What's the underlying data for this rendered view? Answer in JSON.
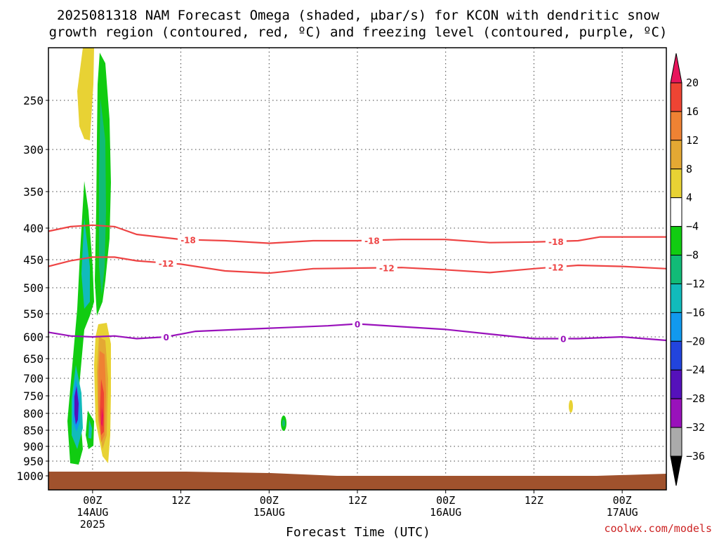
{
  "chart_data": {
    "type": "heatmap",
    "title_line1": "2025081318 NAM Forecast Omega (shaded, μbar/s) for KCON with dendritic snow",
    "title_line2": "growth region (contoured, red, ºC) and freezing level (contoured, purple, ºC)",
    "xlabel": "Forecast Time (UTC)",
    "ylabel": "",
    "credit": "coolwx.com/models",
    "x_hours_range": [
      0,
      84
    ],
    "y_pressure_range": [
      1000,
      200
    ],
    "y_ticks": [
      "250",
      "300",
      "350",
      "400",
      "450",
      "500",
      "550",
      "600",
      "650",
      "700",
      "750",
      "800",
      "850",
      "900",
      "950",
      "1000"
    ],
    "x_ticks": [
      {
        "hour": 6,
        "l1": "00Z",
        "l2": "14AUG",
        "l3": "2025"
      },
      {
        "hour": 18,
        "l1": "12Z",
        "l2": "",
        "l3": ""
      },
      {
        "hour": 30,
        "l1": "00Z",
        "l2": "15AUG",
        "l3": ""
      },
      {
        "hour": 42,
        "l1": "12Z",
        "l2": "",
        "l3": ""
      },
      {
        "hour": 54,
        "l1": "00Z",
        "l2": "16AUG",
        "l3": ""
      },
      {
        "hour": 66,
        "l1": "12Z",
        "l2": "",
        "l3": ""
      },
      {
        "hour": 78,
        "l1": "00Z",
        "l2": "17AUG",
        "l3": ""
      }
    ],
    "colorbar": {
      "labels": [
        "20",
        "16",
        "12",
        "8",
        "4",
        "−4",
        "−8",
        "−12",
        "−16",
        "−20",
        "−24",
        "−28",
        "−32",
        "−36"
      ],
      "colors": [
        "#e8155c",
        "#ee4433",
        "#ef8233",
        "#e4a833",
        "#e8d234",
        "#ffffff",
        "#11cc11",
        "#11bb77",
        "#11bbbb",
        "#1199ee",
        "#2244dd",
        "#5511bb",
        "#9911bb",
        "#aaaaaa",
        "#000000"
      ]
    },
    "contours": [
      {
        "name": "-18 C",
        "label": "-18",
        "color": "#ee4444",
        "points": [
          [
            0,
            405
          ],
          [
            3,
            398
          ],
          [
            6,
            396
          ],
          [
            9,
            398
          ],
          [
            12,
            410
          ],
          [
            18,
            418
          ],
          [
            24,
            420
          ],
          [
            30,
            424
          ],
          [
            36,
            420
          ],
          [
            42,
            420
          ],
          [
            48,
            418
          ],
          [
            54,
            418
          ],
          [
            60,
            423
          ],
          [
            66,
            422
          ],
          [
            72,
            420
          ],
          [
            75,
            414
          ],
          [
            78,
            414
          ],
          [
            84,
            414
          ]
        ],
        "label_hours": [
          19,
          44,
          69
        ]
      },
      {
        "name": "-12 C",
        "label": "-12",
        "color": "#ee4444",
        "points": [
          [
            0,
            462
          ],
          [
            3,
            452
          ],
          [
            6,
            446
          ],
          [
            9,
            446
          ],
          [
            12,
            452
          ],
          [
            18,
            458
          ],
          [
            24,
            470
          ],
          [
            30,
            474
          ],
          [
            36,
            466
          ],
          [
            42,
            465
          ],
          [
            48,
            464
          ],
          [
            54,
            468
          ],
          [
            60,
            473
          ],
          [
            66,
            466
          ],
          [
            72,
            460
          ],
          [
            78,
            462
          ],
          [
            84,
            466
          ]
        ],
        "label_hours": [
          16,
          46,
          69
        ]
      },
      {
        "name": "0 C",
        "label": "0",
        "color": "#9911bb",
        "points": [
          [
            0,
            590
          ],
          [
            3,
            598
          ],
          [
            6,
            600
          ],
          [
            9,
            598
          ],
          [
            12,
            604
          ],
          [
            16,
            600
          ],
          [
            20,
            588
          ],
          [
            26,
            584
          ],
          [
            32,
            580
          ],
          [
            38,
            576
          ],
          [
            42,
            572
          ],
          [
            48,
            578
          ],
          [
            54,
            584
          ],
          [
            60,
            594
          ],
          [
            66,
            604
          ],
          [
            72,
            604
          ],
          [
            78,
            600
          ],
          [
            84,
            608
          ]
        ],
        "label_hours": [
          16,
          42,
          70
        ]
      }
    ]
  }
}
